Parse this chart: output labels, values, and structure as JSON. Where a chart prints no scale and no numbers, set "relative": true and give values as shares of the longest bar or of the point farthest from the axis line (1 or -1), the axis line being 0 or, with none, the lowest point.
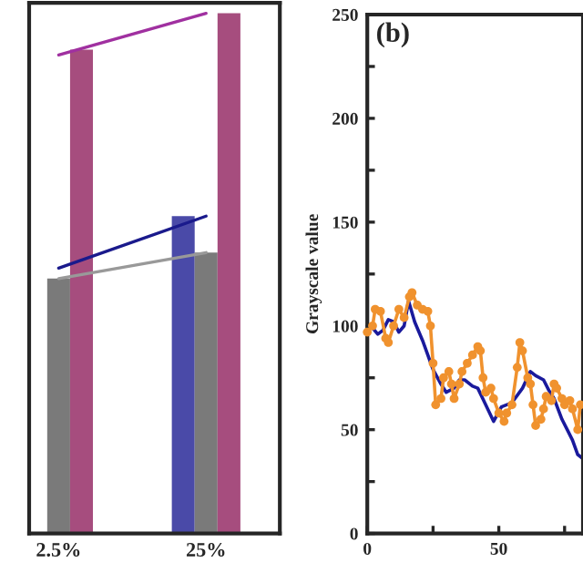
{
  "chart_data": [
    {
      "type": "bar",
      "relative": true,
      "categories": [
        "2.5%",
        "25%"
      ],
      "series": [
        {
          "color": "#4a4aa8",
          "values": [
            null,
            0.61
          ]
        },
        {
          "color": "#7a7a7a",
          "values": [
            0.49,
            0.54
          ]
        },
        {
          "color": "#a64d7e",
          "values": [
            0.93,
            1.0
          ]
        },
        {
          "type": "line",
          "color": "#a030a0",
          "values": [
            0.92,
            1.0
          ]
        },
        {
          "type": "line",
          "color": "#1a1a8c",
          "values": [
            0.51,
            0.61
          ]
        },
        {
          "type": "line",
          "color": "#999999",
          "values": [
            0.49,
            0.54
          ]
        }
      ]
    },
    {
      "type": "line",
      "ylabel": "Grayscale value",
      "annotations": [
        "(b)"
      ],
      "xlim": [
        0,
        82
      ],
      "ylim": [
        0,
        250
      ],
      "xticks": [
        0,
        {
          "value": 25,
          "label": null
        },
        50,
        {
          "value": 75,
          "label": null
        }
      ],
      "yticks": [
        0,
        {
          "value": 25,
          "label": null
        },
        50,
        {
          "value": 75,
          "label": null
        },
        100,
        {
          "value": 125,
          "label": null
        },
        150,
        {
          "value": 175,
          "label": null
        },
        200,
        {
          "value": 225,
          "label": null
        },
        250
      ],
      "marker": "none",
      "series": [
        {
          "color": "#1a1a9c",
          "x": [
            0,
            2,
            4,
            6,
            8,
            10,
            12,
            14,
            15.7,
            18,
            21,
            25,
            28,
            30,
            33,
            35,
            37,
            40,
            42,
            45,
            48,
            51,
            55,
            59,
            62,
            64,
            67,
            69,
            71,
            74,
            76,
            78,
            80,
            82
          ],
          "values": [
            100,
            99,
            96,
            98,
            103,
            102,
            97,
            100,
            112,
            102,
            93,
            79,
            72,
            68,
            70,
            74,
            74,
            71,
            70,
            62,
            54,
            61,
            63,
            70,
            78,
            76,
            74,
            69,
            65,
            55,
            50,
            45,
            38,
            36
          ]
        },
        {
          "color": "#f0922e",
          "marker": "circle",
          "x": [
            0,
            2,
            3,
            5,
            7,
            8,
            10,
            12,
            14,
            16,
            17,
            19,
            21,
            23,
            24,
            25,
            26,
            28,
            29,
            31,
            32,
            33,
            35,
            36,
            38,
            40,
            42,
            43,
            44,
            45,
            47,
            48,
            50,
            52,
            53,
            55,
            57,
            58,
            59,
            61,
            62,
            63,
            64,
            66,
            67,
            68,
            70,
            71,
            72,
            74,
            75,
            77,
            78,
            80,
            81
          ],
          "values": [
            97,
            100,
            108,
            107,
            94,
            92,
            100,
            108,
            104,
            114,
            116,
            110,
            108,
            107,
            100,
            82,
            62,
            65,
            75,
            78,
            72,
            65,
            72,
            78,
            82,
            86,
            90,
            88,
            75,
            68,
            70,
            65,
            58,
            54,
            58,
            62,
            80,
            92,
            88,
            75,
            72,
            62,
            52,
            55,
            60,
            66,
            64,
            72,
            70,
            65,
            62,
            64,
            60,
            50,
            62
          ]
        }
      ]
    }
  ]
}
